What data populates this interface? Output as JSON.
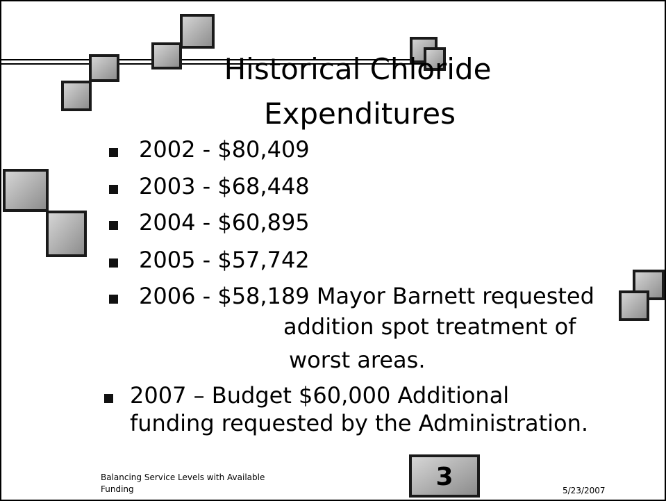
{
  "slide": {
    "title": [
      "Historical Chloride",
      "Expenditures"
    ],
    "bullets": [
      [
        "2002 - $80,409"
      ],
      [
        "2003 - $68,448"
      ],
      [
        "2004 - $60,895"
      ],
      [
        "2005 - $57,742"
      ],
      [
        "2006 - $58,189 Mayor Barnett requested",
        "addition spot treatment of",
        "worst areas."
      ],
      [
        "2007 – Budget $60,000 Additional",
        "funding requested by the Administration."
      ]
    ],
    "footer": [
      "Balancing Service Levels with Available",
      "Funding"
    ],
    "page_number": "3",
    "date": "5/23/2007"
  }
}
